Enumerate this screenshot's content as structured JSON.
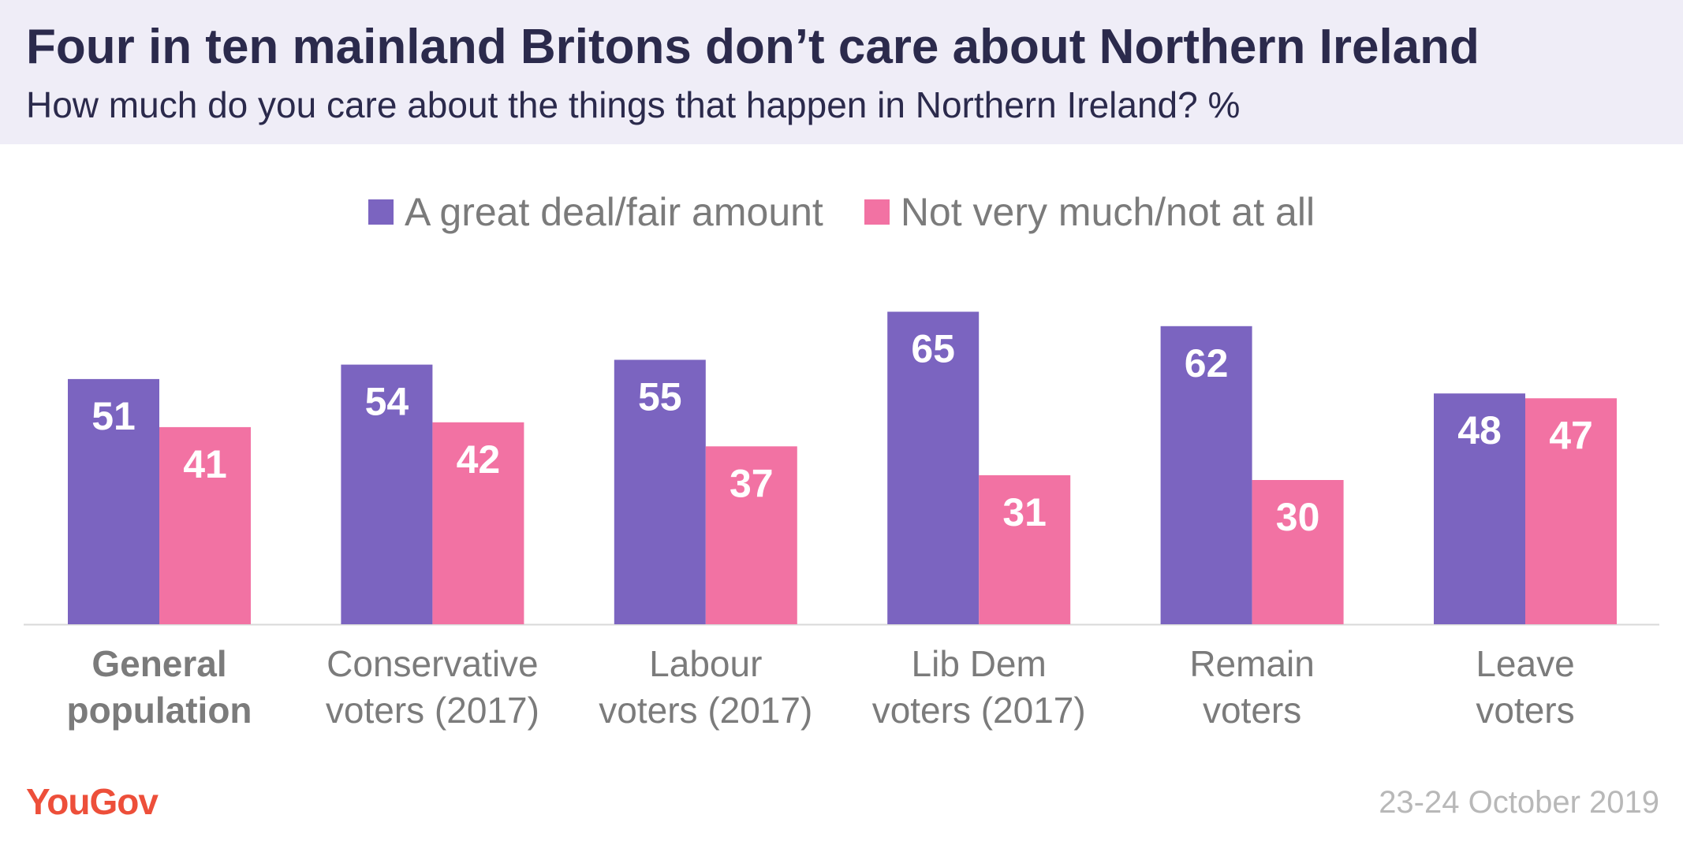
{
  "header": {
    "title": "Four in ten mainland Britons don’t care about Northern Ireland",
    "subtitle": "How much do you care about the things that happen in Northern Ireland? %"
  },
  "colors": {
    "series_a": "#7b64c0",
    "series_b": "#f272a3",
    "header_bg": "#efedf7",
    "brand": "#ed4f3a"
  },
  "chart_data": {
    "type": "bar",
    "title": "Four in ten mainland Britons don’t care about Northern Ireland",
    "subtitle": "How much do you care about the things that happen in Northern Ireland? %",
    "xlabel": "",
    "ylabel": "",
    "ylim": [
      0,
      70
    ],
    "grid": false,
    "legend_position": "top-center",
    "categories": [
      [
        "General",
        "population"
      ],
      [
        "Conservative",
        "voters (2017)"
      ],
      [
        "Labour",
        "voters (2017)"
      ],
      [
        "Lib Dem",
        "voters (2017)"
      ],
      [
        "Remain",
        "voters"
      ],
      [
        "Leave",
        "voters"
      ]
    ],
    "category_bold": [
      true,
      false,
      false,
      false,
      false,
      false
    ],
    "series": [
      {
        "name": "A great deal/fair amount",
        "values": [
          51,
          54,
          55,
          65,
          62,
          48
        ]
      },
      {
        "name": "Not very much/not at all",
        "values": [
          41,
          42,
          37,
          31,
          30,
          47
        ]
      }
    ]
  },
  "footer": {
    "logo": "YouGov",
    "date": "23-24 October 2019"
  }
}
